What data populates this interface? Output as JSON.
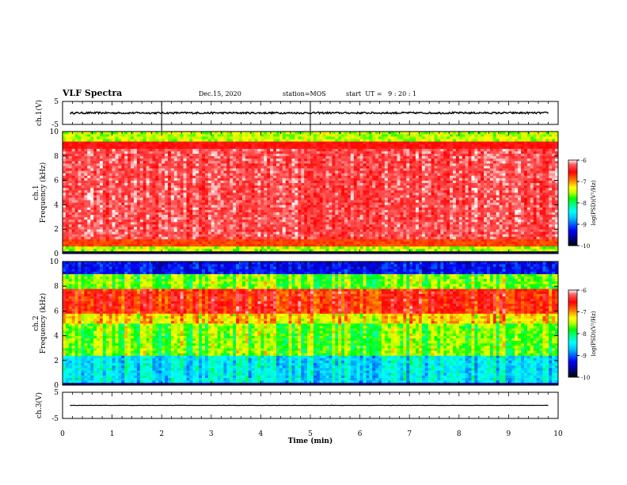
{
  "header": {
    "title": "VLF Spectra",
    "date": "Dec.15, 2020",
    "station": "station=MOS",
    "start": "start  UT =   9 : 20 : 1"
  },
  "chart_data": [
    {
      "type": "line",
      "panel": "ch1-waveform",
      "ylabel": "ch.1(V)",
      "ylim": [
        -5,
        5
      ],
      "yticks": [
        "5",
        "-5"
      ],
      "xlim": [
        0,
        10
      ],
      "series": [
        {
          "y_level": 0,
          "noise_amplitude": 0.4
        }
      ]
    },
    {
      "type": "heatmap",
      "panel": "ch1-spectrogram",
      "ylabel": "ch.1\nFrequency (kHz)",
      "ylim": [
        0,
        10
      ],
      "yticks": [
        "0",
        "2",
        "4",
        "6",
        "8",
        "10"
      ],
      "xlim": [
        0,
        10
      ],
      "colorbar": {
        "label": "log(PSD)(V²/Hz)",
        "range": [
          -10,
          -6
        ],
        "ticks": [
          "-6",
          "-7",
          "-8",
          "-9",
          "-10"
        ]
      }
    },
    {
      "type": "heatmap",
      "panel": "ch2-spectrogram",
      "ylabel": "ch.2\nFrequency (kHz)",
      "ylim": [
        0,
        10
      ],
      "yticks": [
        "0",
        "2",
        "4",
        "6",
        "8",
        "10"
      ],
      "xlim": [
        0,
        10
      ],
      "colorbar": {
        "label": "log(PSD)(V²/Hz)",
        "range": [
          -10,
          -6
        ],
        "ticks": [
          "-6",
          "-7",
          "-8",
          "-9",
          "-10"
        ]
      }
    },
    {
      "type": "line",
      "panel": "ch3-waveform",
      "ylabel": "ch.3(V)",
      "ylim": [
        -5,
        5
      ],
      "yticks": [
        "5",
        "-5"
      ],
      "xlim": [
        0,
        10
      ],
      "series": [
        {
          "y_level": 0,
          "noise_amplitude": 0.05
        }
      ]
    }
  ],
  "xaxis": {
    "label": "Time  (min)",
    "ticks": [
      "0",
      "1",
      "2",
      "3",
      "4",
      "5",
      "6",
      "7",
      "8",
      "9",
      "10"
    ]
  },
  "colors": {
    "colormap": [
      "#000000",
      "#00007f",
      "#0000ff",
      "#00bfff",
      "#00ffff",
      "#00ff80",
      "#00ff00",
      "#bfff00",
      "#ffff00",
      "#ff8000",
      "#ff0000",
      "#ff4040",
      "#ffffff"
    ]
  }
}
